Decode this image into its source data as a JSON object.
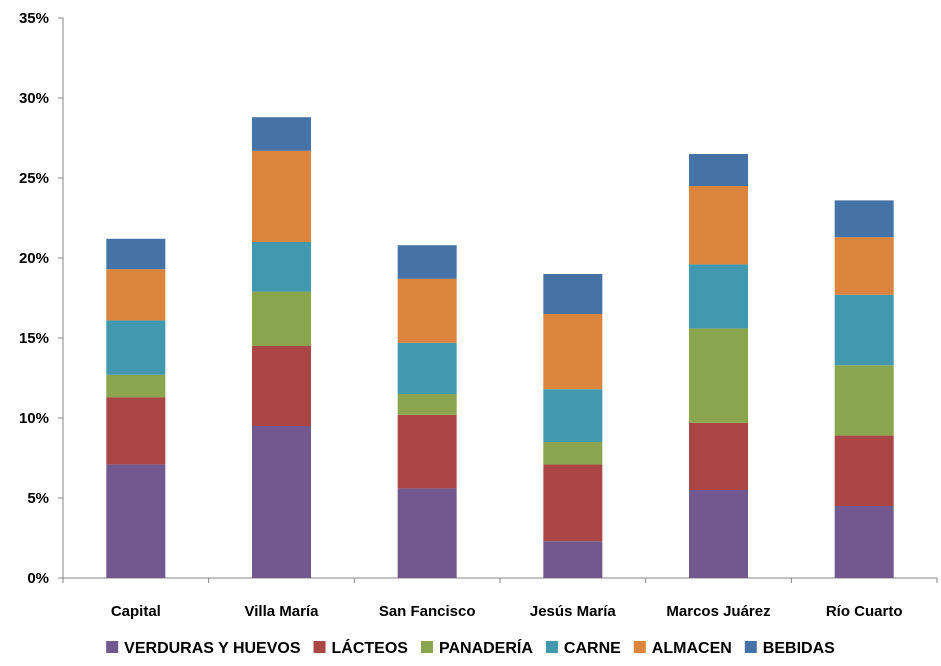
{
  "chart_data": {
    "type": "bar",
    "stacked": true,
    "categories": [
      "Capital",
      "Villa María",
      "San Fancisco",
      "Jesús María",
      "Marcos Juárez",
      "Río Cuarto"
    ],
    "series": [
      {
        "name": "VERDURAS Y HUEVOS",
        "color": "#71588f",
        "values": [
          7.1,
          9.5,
          5.6,
          2.3,
          5.5,
          4.5
        ]
      },
      {
        "name": "LÁCTEOS",
        "color": "#aa4643",
        "values": [
          4.2,
          5.0,
          4.6,
          4.8,
          4.2,
          4.4
        ]
      },
      {
        "name": "PANADERÍA",
        "color": "#89a54e",
        "values": [
          1.4,
          3.4,
          1.3,
          1.4,
          5.9,
          4.4
        ]
      },
      {
        "name": "CARNE",
        "color": "#4198af",
        "values": [
          3.4,
          3.1,
          3.2,
          3.3,
          4.0,
          4.4
        ]
      },
      {
        "name": "ALMACEN",
        "color": "#db843d",
        "values": [
          3.2,
          5.7,
          4.0,
          4.7,
          4.9,
          3.6
        ]
      },
      {
        "name": "BEBIDAS",
        "color": "#4572a7",
        "values": [
          1.9,
          2.1,
          2.1,
          2.5,
          2.0,
          2.3
        ]
      }
    ],
    "yticks": [
      "0%",
      "5%",
      "10%",
      "15%",
      "20%",
      "25%",
      "30%",
      "35%"
    ],
    "ylim": [
      0,
      35
    ],
    "legend_position": "bottom",
    "grid": false,
    "title": "",
    "xlabel": "",
    "ylabel": ""
  }
}
